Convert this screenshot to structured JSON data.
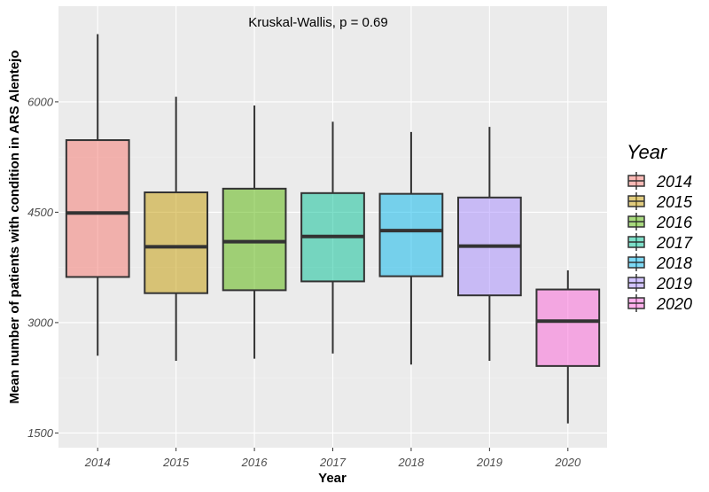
{
  "chart_data": {
    "type": "box",
    "annotation": "Kruskal-Wallis, p = 0.69",
    "xlabel": "Year",
    "ylabel": "Mean number of patients with condition in ARS Alentejo",
    "ylim": [
      1300,
      7300
    ],
    "yticks": [
      1500,
      3000,
      4500,
      6000
    ],
    "ytick_labels": [
      "1500",
      "3000",
      "4500",
      "6000"
    ],
    "grid": true,
    "legend": {
      "title": "Year",
      "placement": "right"
    },
    "categories": [
      "2014",
      "2015",
      "2016",
      "2017",
      "2018",
      "2019",
      "2020"
    ],
    "colors": [
      "#F8766D",
      "#C49A00",
      "#53B400",
      "#00C094",
      "#00B6EB",
      "#A58AFF",
      "#FB61D7"
    ],
    "boxes": [
      {
        "category": "2014",
        "min": 2550,
        "q1": 3620,
        "median": 4490,
        "q3": 5480,
        "max": 6920
      },
      {
        "category": "2015",
        "min": 2480,
        "q1": 3400,
        "median": 4030,
        "q3": 4770,
        "max": 6070
      },
      {
        "category": "2016",
        "min": 2510,
        "q1": 3440,
        "median": 4100,
        "q3": 4820,
        "max": 5950
      },
      {
        "category": "2017",
        "min": 2580,
        "q1": 3560,
        "median": 4170,
        "q3": 4760,
        "max": 5730
      },
      {
        "category": "2018",
        "min": 2430,
        "q1": 3630,
        "median": 4250,
        "q3": 4750,
        "max": 5590
      },
      {
        "category": "2019",
        "min": 2480,
        "q1": 3370,
        "median": 4040,
        "q3": 4700,
        "max": 5660
      },
      {
        "category": "2020",
        "min": 1630,
        "q1": 2410,
        "median": 3020,
        "q3": 3450,
        "max": 3710
      }
    ]
  }
}
